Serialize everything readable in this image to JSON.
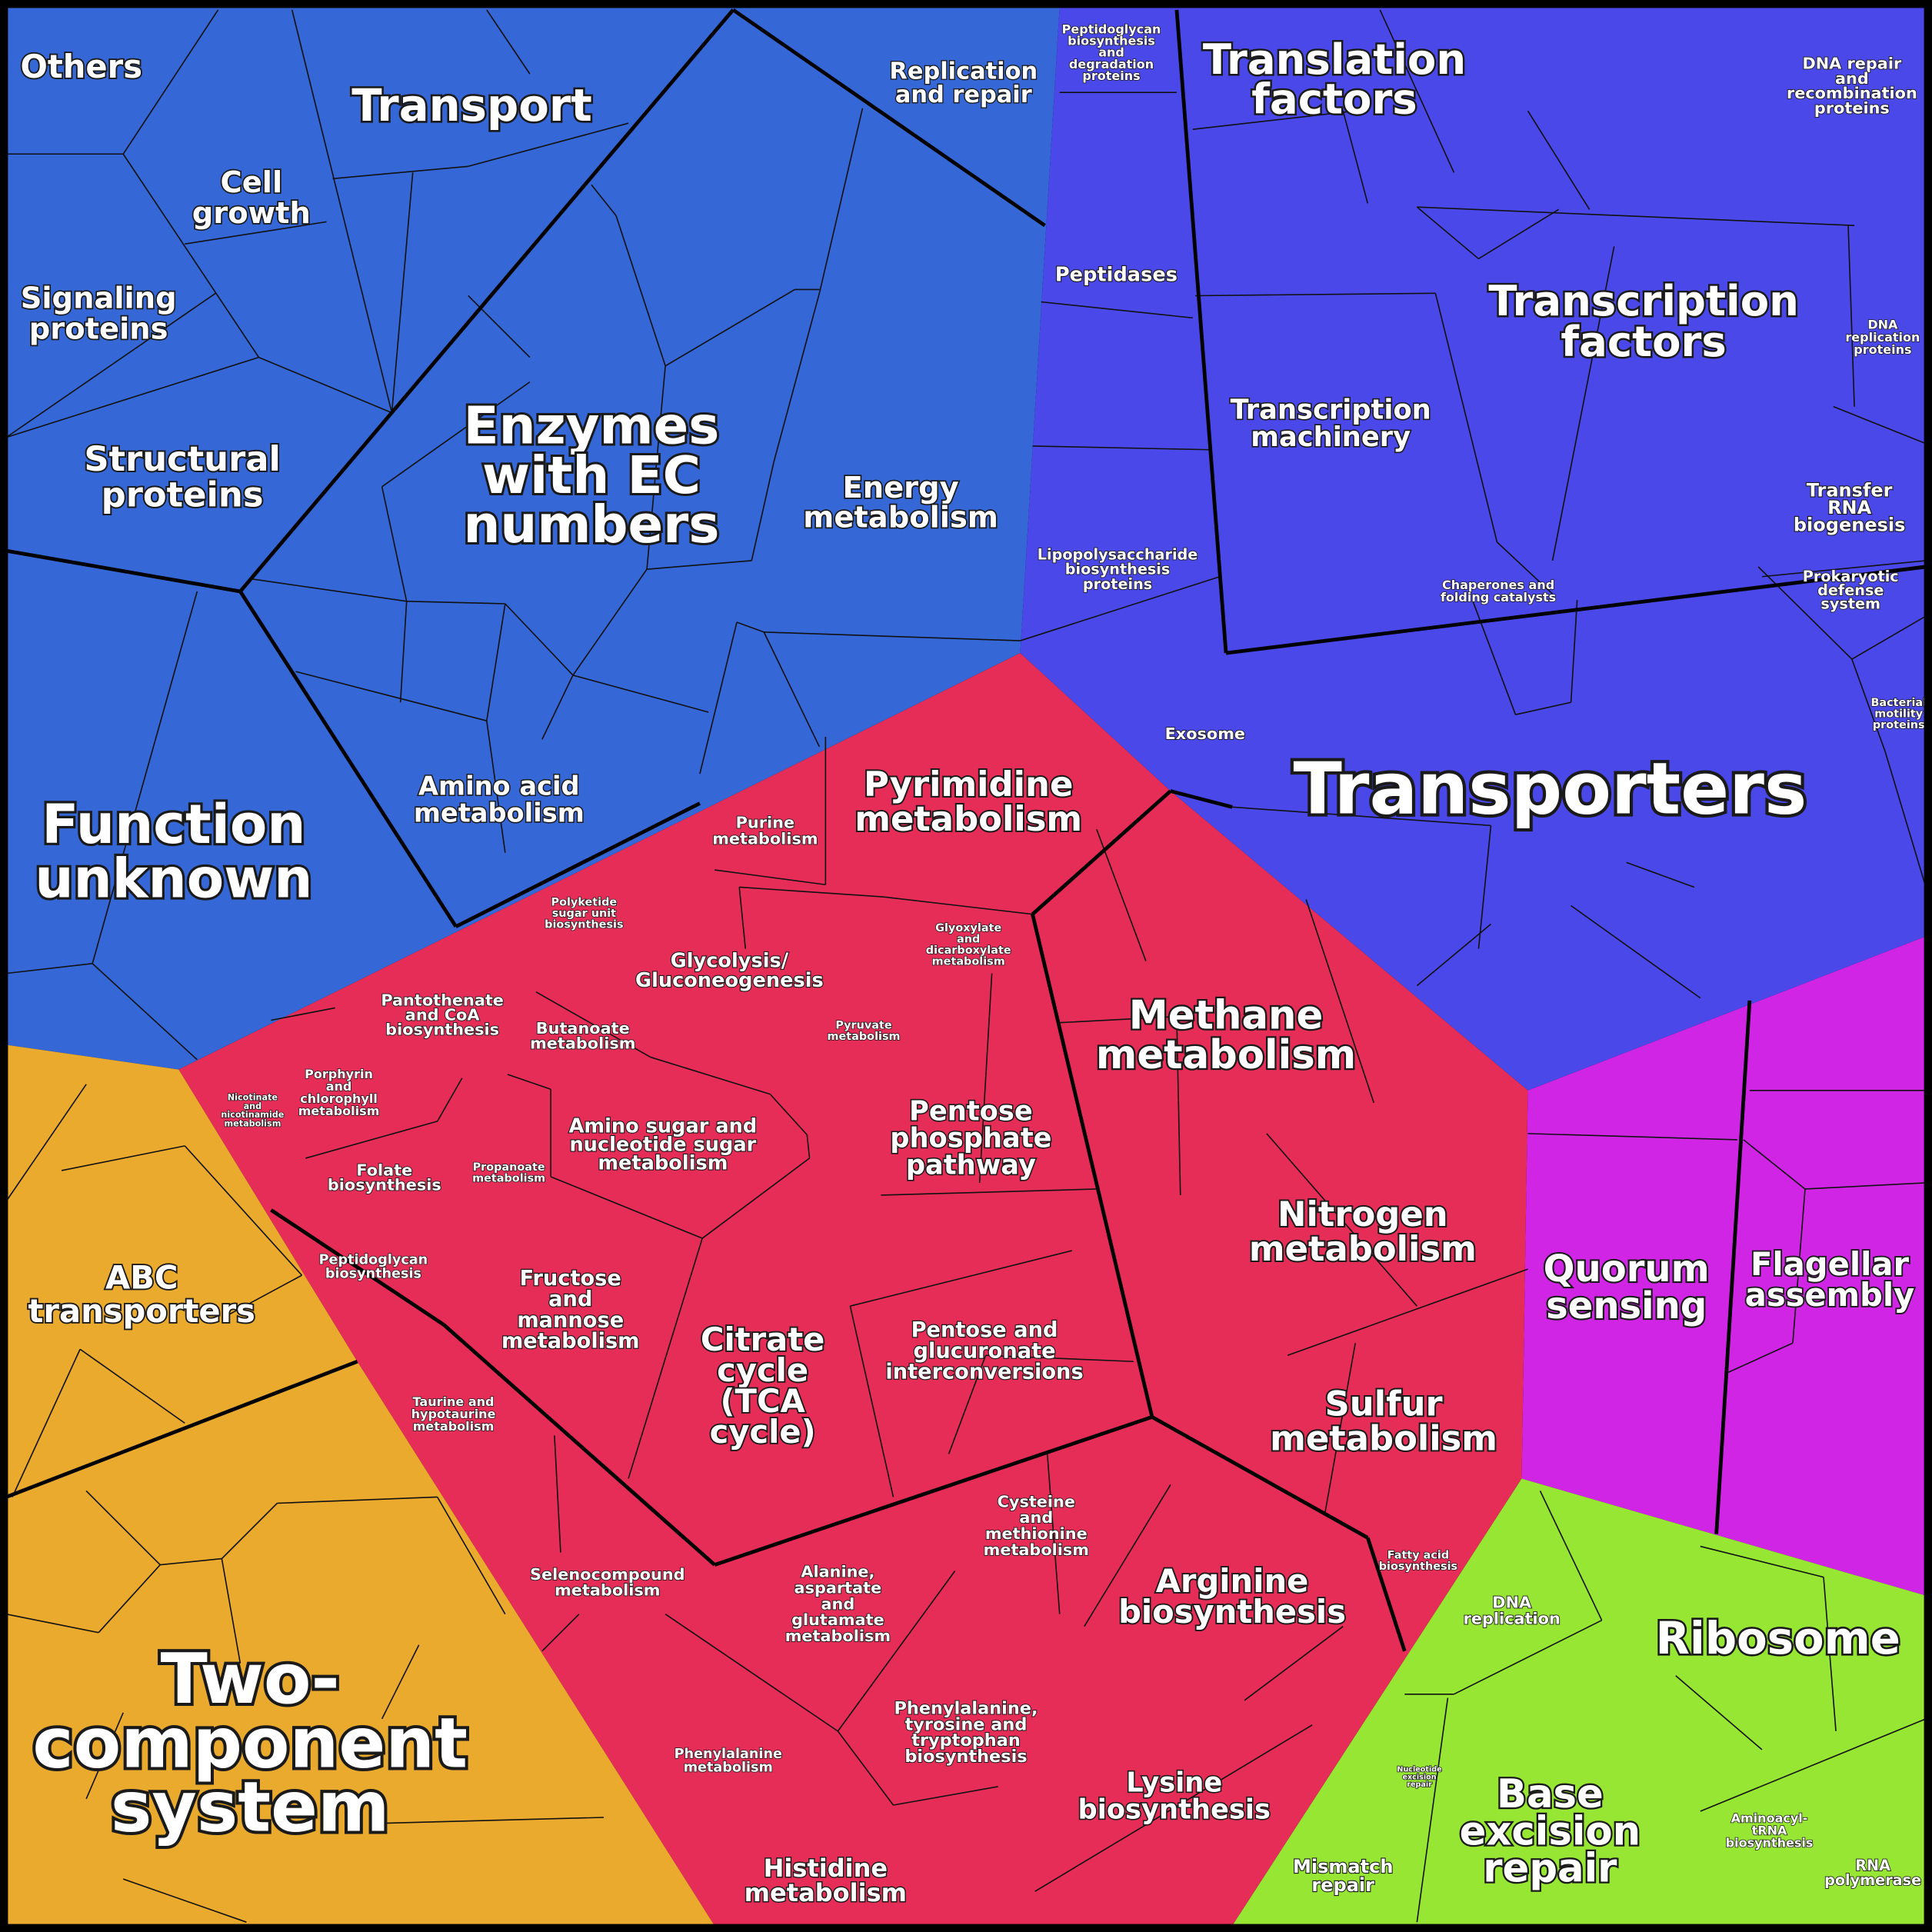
{
  "labels": [
    {
      "lines": [
        "Others"
      ]
    },
    {
      "lines": [
        "Transport"
      ]
    },
    {
      "lines": [
        "Cell",
        "growth"
      ]
    },
    {
      "lines": [
        "Signaling",
        "proteins"
      ]
    },
    {
      "lines": [
        "Structural",
        "proteins"
      ]
    },
    {
      "lines": [
        "Enzymes",
        "with EC",
        "numbers"
      ]
    },
    {
      "lines": [
        "Replication",
        "and repair"
      ]
    },
    {
      "lines": [
        "Energy",
        "metabolism"
      ]
    },
    {
      "lines": [
        "Amino acid",
        "metabolism"
      ]
    },
    {
      "lines": [
        "Function",
        "unknown"
      ]
    },
    {
      "lines": [
        "Peptidoglycan",
        "biosynthesis",
        "and",
        "degradation",
        "proteins"
      ]
    },
    {
      "lines": [
        "Translation",
        "factors"
      ]
    },
    {
      "lines": [
        "DNA repair",
        "and",
        "recombination",
        "proteins"
      ]
    },
    {
      "lines": [
        "Peptidases"
      ]
    },
    {
      "lines": [
        "Transcription",
        "factors"
      ]
    },
    {
      "lines": [
        "DNA",
        "replication",
        "proteins"
      ]
    },
    {
      "lines": [
        "Transcription",
        "machinery"
      ]
    },
    {
      "lines": [
        "Transfer",
        "RNA",
        "biogenesis"
      ]
    },
    {
      "lines": [
        "Lipopolysaccharide",
        "biosynthesis",
        "proteins"
      ]
    },
    {
      "lines": [
        "Chaperones and",
        "folding catalysts"
      ]
    },
    {
      "lines": [
        "Prokaryotic",
        "defense",
        "system"
      ]
    },
    {
      "lines": [
        "Exosome"
      ]
    },
    {
      "lines": [
        "Bacterial",
        "motility",
        "proteins"
      ]
    },
    {
      "lines": [
        "Transporters"
      ]
    },
    {
      "lines": [
        "Pyrimidine",
        "metabolism"
      ]
    },
    {
      "lines": [
        "Purine",
        "metabolism"
      ]
    },
    {
      "lines": [
        "Polyketide",
        "sugar unit",
        "biosynthesis"
      ]
    },
    {
      "lines": [
        "Glyoxylate",
        "and",
        "dicarboxylate",
        "metabolism"
      ]
    },
    {
      "lines": [
        "Glycolysis/",
        "Gluconeogenesis"
      ]
    },
    {
      "lines": [
        "Pantothenate",
        "and CoA",
        "biosynthesis"
      ]
    },
    {
      "lines": [
        "Butanoate",
        "metabolism"
      ]
    },
    {
      "lines": [
        "Pyruvate",
        "metabolism"
      ]
    },
    {
      "lines": [
        "Methane",
        "metabolism"
      ]
    },
    {
      "lines": [
        "Porphyrin",
        "and",
        "chlorophyll",
        "metabolism"
      ]
    },
    {
      "lines": [
        "Nicotinate",
        "and",
        "nicotinamide",
        "metabolism"
      ]
    },
    {
      "lines": [
        "Pentose",
        "phosphate",
        "pathway"
      ]
    },
    {
      "lines": [
        "Amino sugar and",
        "nucleotide sugar",
        "metabolism"
      ]
    },
    {
      "lines": [
        "Propanoate",
        "metabolism"
      ]
    },
    {
      "lines": [
        "Folate",
        "biosynthesis"
      ]
    },
    {
      "lines": [
        "Nitrogen",
        "metabolism"
      ]
    },
    {
      "lines": [
        "Peptidoglycan",
        "biosynthesis"
      ]
    },
    {
      "lines": [
        "Fructose",
        "and",
        "mannose",
        "metabolism"
      ]
    },
    {
      "lines": [
        "Quorum",
        "sensing"
      ]
    },
    {
      "lines": [
        "Flagellar",
        "assembly"
      ]
    },
    {
      "lines": [
        "ABC",
        "transporters"
      ]
    },
    {
      "lines": [
        "Citrate",
        "cycle",
        "(TCA",
        "cycle)"
      ]
    },
    {
      "lines": [
        "Pentose and",
        "glucuronate",
        "interconversions"
      ]
    },
    {
      "lines": [
        "Taurine and",
        "hypotaurine",
        "metabolism"
      ]
    },
    {
      "lines": [
        "Sulfur",
        "metabolism"
      ]
    },
    {
      "lines": [
        "Fatty acid",
        "biosynthesis"
      ]
    },
    {
      "lines": [
        "Cysteine",
        "and",
        "methionine",
        "metabolism"
      ]
    },
    {
      "lines": [
        "Selenocompound",
        "metabolism"
      ]
    },
    {
      "lines": [
        "Alanine,",
        "aspartate",
        "and",
        "glutamate",
        "metabolism"
      ]
    },
    {
      "lines": [
        "Arginine",
        "biosynthesis"
      ]
    },
    {
      "lines": [
        "Phenylalanine,",
        "tyrosine and",
        "tryptophan",
        "biosynthesis"
      ]
    },
    {
      "lines": [
        "Phenylalanine",
        "metabolism"
      ]
    },
    {
      "lines": [
        "Lysine",
        "biosynthesis"
      ]
    },
    {
      "lines": [
        "Histidine",
        "metabolism"
      ]
    },
    {
      "lines": [
        "Two-",
        "component",
        "system"
      ]
    },
    {
      "lines": [
        "DNA",
        "replication"
      ]
    },
    {
      "lines": [
        "Ribosome"
      ]
    },
    {
      "lines": [
        "Nucleotide",
        "excision",
        "repair"
      ]
    },
    {
      "lines": [
        "Base",
        "excision",
        "repair"
      ]
    },
    {
      "lines": [
        "Aminoacyl-",
        "tRNA",
        "biosynthesis"
      ]
    },
    {
      "lines": [
        "Mismatch",
        "repair"
      ]
    },
    {
      "lines": [
        "RNA",
        "polymerase"
      ]
    }
  ]
}
